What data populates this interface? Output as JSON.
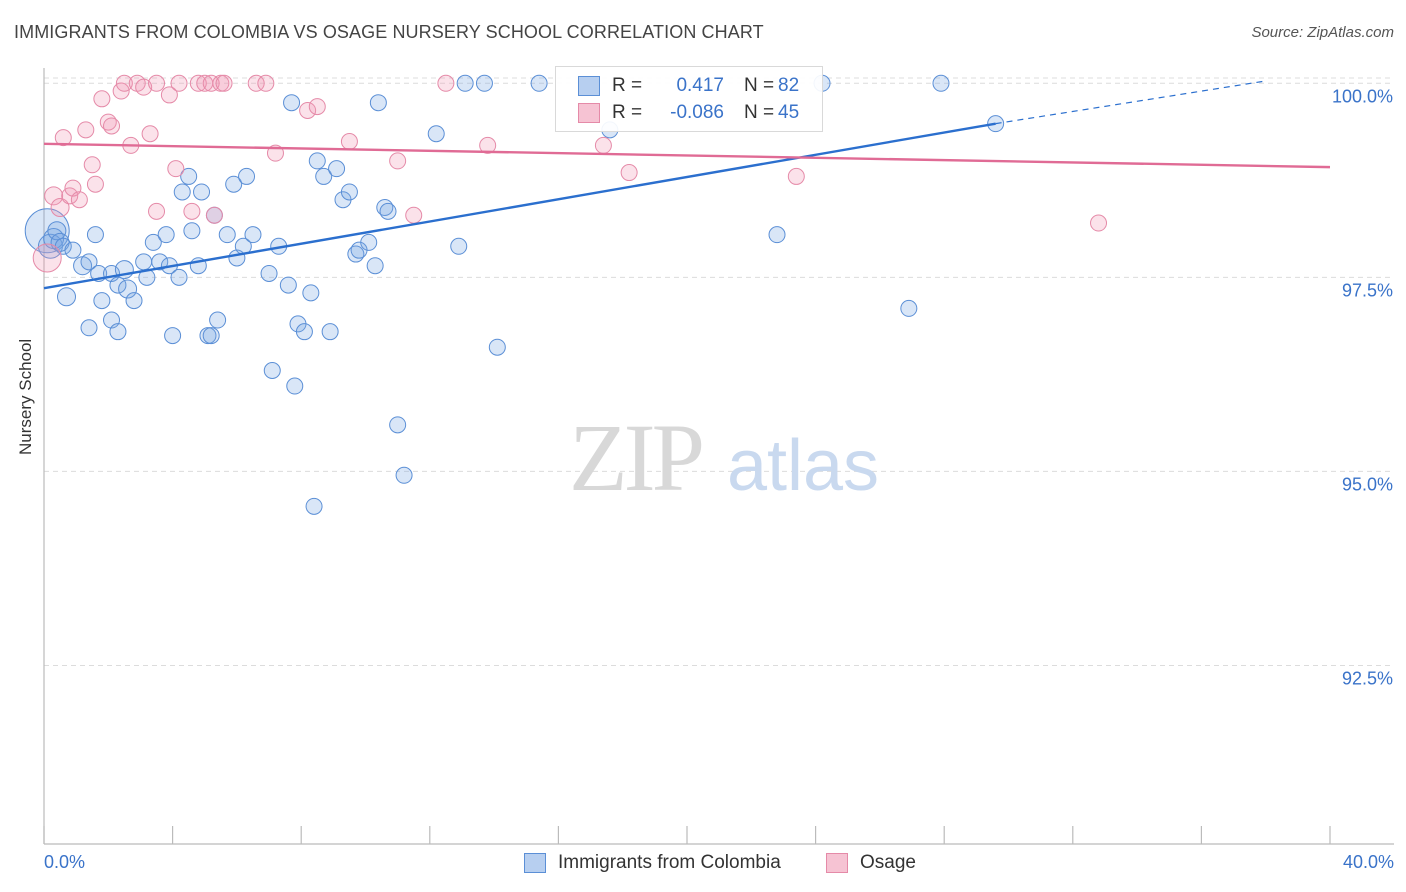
{
  "header": {
    "title": "IMMIGRANTS FROM COLOMBIA VS OSAGE NURSERY SCHOOL CORRELATION CHART",
    "source": "Source: ZipAtlas.com"
  },
  "watermark": {
    "zip": "ZIP",
    "atlas": "atlas"
  },
  "colors": {
    "blue": "#5b8fd6",
    "blue_fill": "rgba(120,165,225,0.28)",
    "blue_line": "#2b6fce",
    "pink": "#e58aa8",
    "pink_fill": "rgba(240,150,180,0.28)",
    "pink_line": "#e06b95",
    "axis_text": "#3a73c9",
    "grid": "#dcdcdc"
  },
  "legend_box": {
    "rows": [
      {
        "swatch_color": "blue",
        "r_label": "R =",
        "r_value": "0.417",
        "n_label": "N =",
        "n_value": "82"
      },
      {
        "swatch_color": "pink",
        "r_label": "R =",
        "r_value": "-0.086",
        "n_label": "N =",
        "n_value": "45"
      }
    ]
  },
  "bottom_legend": [
    {
      "label": "Immigrants from Colombia",
      "swatch_color": "blue"
    },
    {
      "label": "Osage",
      "swatch_color": "pink"
    }
  ],
  "chart_data": {
    "type": "scatter",
    "title": "IMMIGRANTS FROM COLOMBIA VS OSAGE NURSERY SCHOOL CORRELATION CHART",
    "xlabel": "",
    "ylabel": "Nursery School",
    "xlim": [
      0,
      40
    ],
    "ylim": [
      90.2,
      100.3
    ],
    "x_tick_labels": [
      "0.0%",
      "40.0%"
    ],
    "y_ticks": [
      {
        "value": 100.0,
        "label": "100.0%"
      },
      {
        "value": 97.5,
        "label": "97.5%"
      },
      {
        "value": 95.0,
        "label": "95.0%"
      },
      {
        "value": 92.5,
        "label": "92.5%"
      }
    ],
    "grid": true,
    "series": [
      {
        "name": "Immigrants from Colombia",
        "color": "blue",
        "r": 0.417,
        "n": 82,
        "trend": {
          "x0": 0.0,
          "y0": 97.36,
          "x1": 29.6,
          "y1": 99.48,
          "dash_x_end": 38.0,
          "dash_y_end": 100.03
        },
        "points": [
          [
            0.1,
            98.1,
            22
          ],
          [
            0.2,
            97.9,
            12
          ],
          [
            0.3,
            98.0,
            10
          ],
          [
            0.4,
            98.1,
            9
          ],
          [
            0.5,
            97.95,
            9
          ],
          [
            0.6,
            97.9,
            8
          ],
          [
            0.7,
            97.25,
            9
          ],
          [
            0.9,
            97.85,
            8
          ],
          [
            1.2,
            97.65,
            9
          ],
          [
            1.4,
            97.7,
            8
          ],
          [
            1.6,
            98.05,
            8
          ],
          [
            1.7,
            97.55,
            8
          ],
          [
            1.8,
            97.2,
            8
          ],
          [
            2.1,
            97.55,
            8
          ],
          [
            2.3,
            97.4,
            8
          ],
          [
            2.5,
            97.6,
            9
          ],
          [
            2.6,
            97.35,
            9
          ],
          [
            2.8,
            97.2,
            8
          ],
          [
            3.1,
            97.7,
            8
          ],
          [
            3.2,
            97.5,
            8
          ],
          [
            3.4,
            97.95,
            8
          ],
          [
            3.6,
            97.7,
            8
          ],
          [
            3.8,
            98.05,
            8
          ],
          [
            3.9,
            97.65,
            8
          ],
          [
            4.2,
            97.5,
            8
          ],
          [
            4.3,
            98.6,
            8
          ],
          [
            4.5,
            98.8,
            8
          ],
          [
            4.6,
            98.1,
            8
          ],
          [
            4.8,
            97.65,
            8
          ],
          [
            4.9,
            98.6,
            8
          ],
          [
            5.3,
            98.3,
            8
          ],
          [
            5.7,
            98.05,
            8
          ],
          [
            5.9,
            98.7,
            8
          ],
          [
            6.0,
            97.75,
            8
          ],
          [
            6.2,
            97.9,
            8
          ],
          [
            6.3,
            98.8,
            8
          ],
          [
            6.5,
            98.05,
            8
          ],
          [
            7.0,
            97.55,
            8
          ],
          [
            7.3,
            97.9,
            8
          ],
          [
            7.6,
            97.4,
            8
          ],
          [
            7.7,
            99.75,
            8
          ],
          [
            8.3,
            97.3,
            8
          ],
          [
            8.5,
            99.0,
            8
          ],
          [
            8.7,
            98.8,
            8
          ],
          [
            9.1,
            98.9,
            8
          ],
          [
            9.3,
            98.5,
            8
          ],
          [
            9.5,
            98.6,
            8
          ],
          [
            9.7,
            97.8,
            8
          ],
          [
            9.8,
            97.85,
            8
          ],
          [
            10.1,
            97.95,
            8
          ],
          [
            10.3,
            97.65,
            8
          ],
          [
            10.4,
            99.75,
            8
          ],
          [
            10.6,
            98.4,
            8
          ],
          [
            10.7,
            98.35,
            8
          ],
          [
            12.2,
            99.35,
            8
          ],
          [
            12.9,
            97.9,
            8
          ],
          [
            13.1,
            100.0,
            8
          ],
          [
            13.7,
            100.0,
            8
          ],
          [
            15.4,
            100.0,
            8
          ],
          [
            17.6,
            99.4,
            8
          ],
          [
            22.8,
            98.05,
            8
          ],
          [
            24.2,
            100.0,
            8
          ],
          [
            26.9,
            97.1,
            8
          ],
          [
            27.9,
            100.0,
            8
          ],
          [
            29.6,
            99.48,
            8
          ],
          [
            1.4,
            96.85,
            8
          ],
          [
            2.1,
            96.95,
            8
          ],
          [
            2.3,
            96.8,
            8
          ],
          [
            4.0,
            96.75,
            8
          ],
          [
            5.1,
            96.75,
            8
          ],
          [
            5.4,
            96.95,
            8
          ],
          [
            5.2,
            96.75,
            8
          ],
          [
            7.9,
            96.9,
            8
          ],
          [
            8.1,
            96.8,
            8
          ],
          [
            8.9,
            96.8,
            8
          ],
          [
            7.1,
            96.3,
            8
          ],
          [
            7.8,
            96.1,
            8
          ],
          [
            11.0,
            95.6,
            8
          ],
          [
            11.2,
            94.95,
            8
          ],
          [
            14.1,
            96.6,
            8
          ],
          [
            8.4,
            94.55,
            8
          ]
        ]
      },
      {
        "name": "Osage",
        "color": "pink",
        "r": -0.086,
        "n": 45,
        "trend": {
          "x0": 0.0,
          "y0": 99.22,
          "x1": 40.0,
          "y1": 98.92
        },
        "points": [
          [
            0.1,
            97.75,
            14
          ],
          [
            0.3,
            98.55,
            9
          ],
          [
            0.5,
            98.4,
            9
          ],
          [
            0.6,
            99.3,
            8
          ],
          [
            0.8,
            98.55,
            8
          ],
          [
            0.9,
            98.65,
            8
          ],
          [
            1.1,
            98.5,
            8
          ],
          [
            1.3,
            99.4,
            8
          ],
          [
            1.5,
            98.95,
            8
          ],
          [
            1.6,
            98.7,
            8
          ],
          [
            1.8,
            99.8,
            8
          ],
          [
            2.0,
            99.5,
            8
          ],
          [
            2.1,
            99.45,
            8
          ],
          [
            2.4,
            99.9,
            8
          ],
          [
            2.5,
            100.0,
            8
          ],
          [
            2.7,
            99.2,
            8
          ],
          [
            2.9,
            100.0,
            8
          ],
          [
            3.1,
            99.95,
            8
          ],
          [
            3.3,
            99.35,
            8
          ],
          [
            3.5,
            100.0,
            8
          ],
          [
            3.5,
            98.35,
            8
          ],
          [
            3.9,
            99.85,
            8
          ],
          [
            4.1,
            98.9,
            8
          ],
          [
            4.2,
            100.0,
            8
          ],
          [
            4.6,
            98.35,
            8
          ],
          [
            4.8,
            100.0,
            8
          ],
          [
            5.0,
            100.0,
            8
          ],
          [
            5.2,
            100.0,
            8
          ],
          [
            5.3,
            98.3,
            8
          ],
          [
            5.5,
            100.0,
            8
          ],
          [
            5.6,
            100.0,
            8
          ],
          [
            6.6,
            100.0,
            8
          ],
          [
            6.9,
            100.0,
            8
          ],
          [
            7.2,
            99.1,
            8
          ],
          [
            8.2,
            99.65,
            8
          ],
          [
            8.5,
            99.7,
            8
          ],
          [
            9.5,
            99.25,
            8
          ],
          [
            11.0,
            99.0,
            8
          ],
          [
            11.5,
            98.3,
            8
          ],
          [
            12.5,
            100.0,
            8
          ],
          [
            13.8,
            99.2,
            8
          ],
          [
            17.4,
            99.2,
            8
          ],
          [
            18.2,
            98.85,
            8
          ],
          [
            23.4,
            98.8,
            8
          ],
          [
            32.8,
            98.2,
            8
          ]
        ]
      }
    ]
  }
}
